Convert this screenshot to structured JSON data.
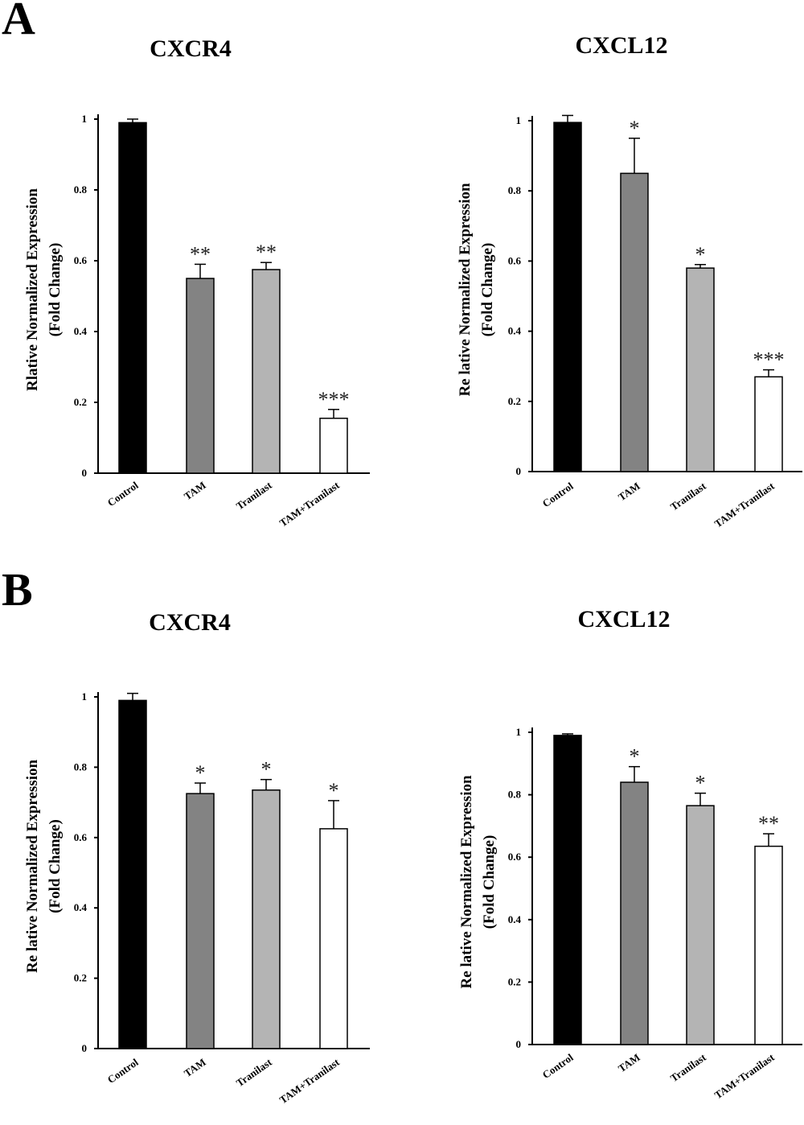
{
  "panels": [
    {
      "letter": "A"
    },
    {
      "letter": "B"
    }
  ],
  "colors": {
    "control": "#000000",
    "tam": "#838383",
    "tranilast": "#b4b4b4",
    "combo": "#ffffff"
  },
  "chart_data": [
    {
      "type": "bar",
      "panel": "A",
      "title": "CXCR4",
      "ylabel_line1": "Rlative Normalized Expression",
      "ylabel_line2": "(Fold Change)",
      "categories": [
        "Control",
        "TAM",
        "Tranilast",
        "TAM+Tranilast"
      ],
      "values": [
        0.99,
        0.55,
        0.575,
        0.155
      ],
      "errors": [
        0.01,
        0.04,
        0.02,
        0.025
      ],
      "significance": [
        "",
        "**",
        "**",
        "***"
      ],
      "yticks": [
        "0",
        "0.2",
        "0.4",
        "0.6",
        "0.8",
        "1"
      ],
      "ylim": [
        0,
        1
      ]
    },
    {
      "type": "bar",
      "panel": "A",
      "title": "CXCL12",
      "ylabel_line1": "Re lative Normalized Expression",
      "ylabel_line2": "(Fold Change)",
      "categories": [
        "Control",
        "TAM",
        "Tranilast",
        "TAM+Tranilast"
      ],
      "values": [
        0.995,
        0.85,
        0.58,
        0.27
      ],
      "errors": [
        0.02,
        0.1,
        0.01,
        0.02
      ],
      "significance": [
        "",
        "*",
        "*",
        "***"
      ],
      "yticks": [
        "0",
        "0.2",
        "0.4",
        "0.6",
        "0.8",
        "1"
      ],
      "ylim": [
        0,
        1
      ]
    },
    {
      "type": "bar",
      "panel": "B",
      "title": "CXCR4",
      "ylabel_line1": "Re lative Normalized Expression",
      "ylabel_line2": "(Fold Change)",
      "categories": [
        "Control",
        "TAM",
        "Tranilast",
        "TAM+Tranilast"
      ],
      "values": [
        0.99,
        0.725,
        0.735,
        0.625
      ],
      "errors": [
        0.02,
        0.03,
        0.03,
        0.08
      ],
      "significance": [
        "",
        "*",
        "*",
        "*"
      ],
      "yticks": [
        "0",
        "0.2",
        "0.4",
        "0.6",
        "0.8",
        "1"
      ],
      "ylim": [
        0,
        1
      ]
    },
    {
      "type": "bar",
      "panel": "B",
      "title": "CXCL12",
      "ylabel_line1": "Re lative Normalized Expression",
      "ylabel_line2": "(Fold Change)",
      "categories": [
        "Control",
        "TAM",
        "Tranilast",
        "TAM+Tranilast"
      ],
      "values": [
        0.99,
        0.84,
        0.765,
        0.635
      ],
      "errors": [
        0.005,
        0.05,
        0.04,
        0.04
      ],
      "significance": [
        "",
        "*",
        "*",
        "**"
      ],
      "yticks": [
        "0",
        "0.2",
        "0.4",
        "0.6",
        "0.8",
        "1"
      ],
      "ylim": [
        0,
        1
      ]
    }
  ]
}
